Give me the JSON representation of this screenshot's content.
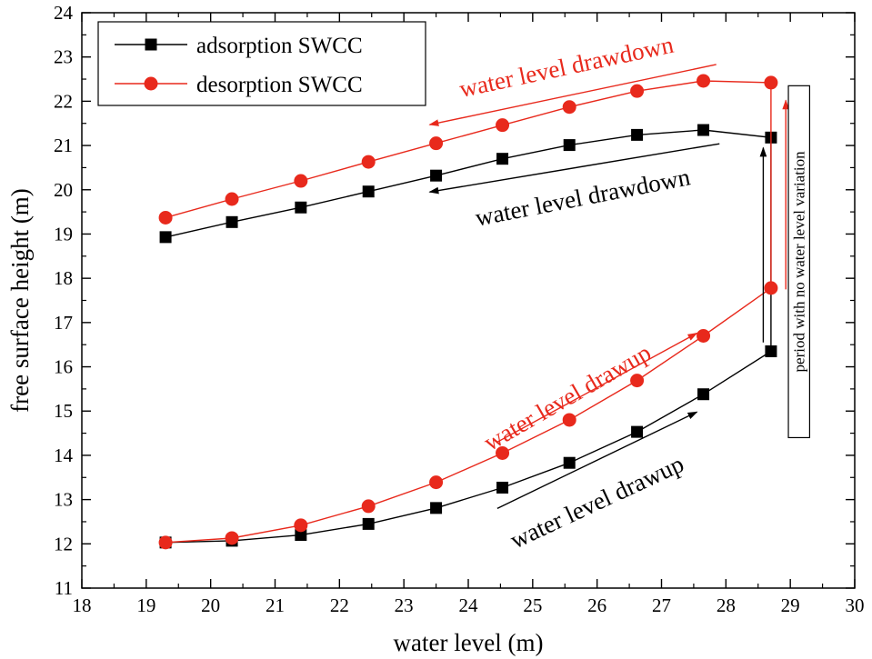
{
  "chart_data": {
    "type": "line",
    "xlabel": "water level (m)",
    "ylabel": "free surface height (m)",
    "xlim": [
      18,
      30
    ],
    "ylim": [
      11,
      24
    ],
    "xticks": [
      18,
      19,
      20,
      21,
      22,
      23,
      24,
      25,
      26,
      27,
      28,
      29,
      30
    ],
    "yticks": [
      11,
      12,
      13,
      14,
      15,
      16,
      17,
      18,
      19,
      20,
      21,
      22,
      23,
      24
    ],
    "grid": false,
    "legend_position": "top-left",
    "series": [
      {
        "name": "adsorption SWCC",
        "color": "#000000",
        "marker": "square",
        "x": [
          19.3,
          20.33,
          21.4,
          22.45,
          23.5,
          24.53,
          25.57,
          26.62,
          27.65,
          28.7,
          28.7,
          27.65,
          26.62,
          25.57,
          24.53,
          23.5,
          22.45,
          21.4,
          20.33,
          19.3
        ],
        "y": [
          12.03,
          12.07,
          12.2,
          12.45,
          12.81,
          13.27,
          13.83,
          14.53,
          15.38,
          16.35,
          21.18,
          21.35,
          21.24,
          21.01,
          20.7,
          20.32,
          19.96,
          19.6,
          19.27,
          18.93
        ]
      },
      {
        "name": "desorption SWCC",
        "color": "#e8291c",
        "marker": "circle",
        "x": [
          19.3,
          20.33,
          21.4,
          22.45,
          23.5,
          24.53,
          25.57,
          26.62,
          27.65,
          28.7,
          28.7,
          27.65,
          26.62,
          25.57,
          24.53,
          23.5,
          22.45,
          21.4,
          20.33,
          19.3
        ],
        "y": [
          12.03,
          12.13,
          12.42,
          12.85,
          13.39,
          14.05,
          14.8,
          15.69,
          16.7,
          17.78,
          22.42,
          22.46,
          22.23,
          21.87,
          21.46,
          21.05,
          20.63,
          20.2,
          19.79,
          19.37
        ]
      }
    ],
    "annotations": [
      {
        "text": "water level drawdown",
        "color": "#e8291c"
      },
      {
        "text": "water level drawdown",
        "color": "#000000"
      },
      {
        "text": "water level drawup",
        "color": "#e8291c"
      },
      {
        "text": "water level drawup",
        "color": "#000000"
      },
      {
        "text": "period with no water level variation",
        "color": "#000000"
      }
    ]
  }
}
